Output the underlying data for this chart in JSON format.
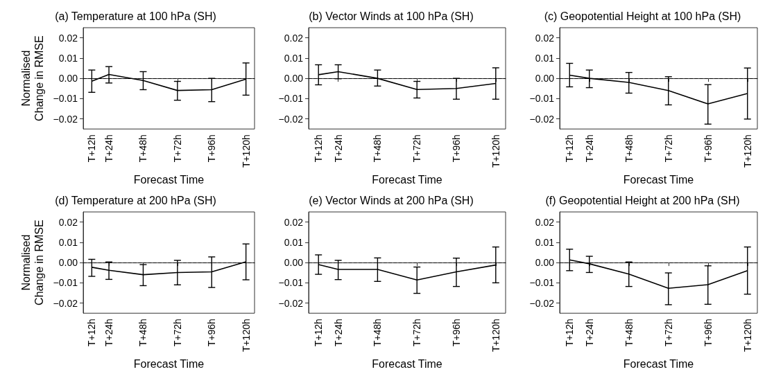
{
  "chart_data": [
    {
      "type": "line",
      "title": "(a) Temperature at 100 hPa (SH)",
      "xlabel": "Forecast Time",
      "ylabel": "Normalised\nChange in RMSE",
      "categories": [
        "T+12h",
        "T+24h",
        null,
        "T+48h",
        null,
        "T+72h",
        null,
        "T+96h",
        null,
        "T+120h"
      ],
      "ylim": [
        -0.025,
        0.025
      ],
      "yticks": [
        {
          "value": -0.02,
          "label": "−0.02"
        },
        {
          "value": -0.01,
          "label": "−0.01"
        },
        {
          "value": 0,
          "label": "0.00"
        },
        {
          "value": 0.01,
          "label": "0.01"
        },
        {
          "value": 0.02,
          "label": "0.02"
        }
      ],
      "grid": false,
      "marker": "none",
      "line_style": "solid",
      "ref_lines": [
        {
          "axis": "y",
          "value": 0,
          "line_style": "dashed",
          "color": "#000000"
        }
      ],
      "series": [
        {
          "color": "#000000",
          "values": [
            -0.0014,
            0.0019,
            null,
            -0.0011,
            null,
            -0.006,
            null,
            -0.0056,
            null,
            -0.0004
          ],
          "errors": [
            [
              -0.0069,
              0.0041
            ],
            [
              -0.0023,
              0.0058
            ],
            null,
            [
              -0.0056,
              0.0033
            ],
            null,
            [
              -0.0108,
              -0.0015
            ],
            null,
            [
              -0.0115,
              0.0
            ],
            null,
            [
              -0.0083,
              0.0076
            ]
          ]
        }
      ]
    },
    {
      "type": "line",
      "title": "(b) Vector Winds at 100 hPa (SH)",
      "xlabel": "Forecast Time",
      "categories": [
        "T+12h",
        "T+24h",
        null,
        "T+48h",
        null,
        "T+72h",
        null,
        "T+96h",
        null,
        "T+120h"
      ],
      "ylim": [
        -0.025,
        0.025
      ],
      "yticks": [
        {
          "value": -0.02,
          "label": "−0.02"
        },
        {
          "value": -0.01,
          "label": "−0.01"
        },
        {
          "value": 0,
          "label": "0.00"
        },
        {
          "value": 0.01,
          "label": "0.01"
        },
        {
          "value": 0.02,
          "label": "0.02"
        }
      ],
      "grid": false,
      "marker": "none",
      "line_style": "solid",
      "ref_lines": [
        {
          "axis": "y",
          "value": 0,
          "line_style": "dashed",
          "color": "#000000"
        }
      ],
      "series": [
        {
          "color": "#000000",
          "values": [
            0.0018,
            0.0033,
            null,
            0.0,
            null,
            -0.0055,
            null,
            -0.005,
            null,
            -0.0025
          ],
          "errors": [
            [
              -0.0032,
              0.0067
            ],
            [
              -0.0002,
              0.0067
            ],
            null,
            [
              -0.0038,
              0.0041
            ],
            null,
            [
              -0.0097,
              -0.0015
            ],
            null,
            [
              -0.0103,
              0.0
            ],
            null,
            [
              -0.0103,
              0.0052
            ]
          ]
        }
      ]
    },
    {
      "type": "line",
      "title": "(c) Geopotential Height at 100 hPa (SH)",
      "xlabel": "Forecast Time",
      "categories": [
        "T+12h",
        "T+24h",
        null,
        "T+48h",
        null,
        "T+72h",
        null,
        "T+96h",
        null,
        "T+120h"
      ],
      "ylim": [
        -0.025,
        0.025
      ],
      "yticks": [
        {
          "value": -0.02,
          "label": "−0.02"
        },
        {
          "value": -0.01,
          "label": "−0.01"
        },
        {
          "value": 0,
          "label": "0.00"
        },
        {
          "value": 0.01,
          "label": "0.01"
        },
        {
          "value": 0.02,
          "label": "0.02"
        }
      ],
      "grid": false,
      "marker": "none",
      "line_style": "solid",
      "ref_lines": [
        {
          "axis": "y",
          "value": 0,
          "line_style": "dashed",
          "color": "#000000"
        }
      ],
      "series": [
        {
          "color": "#000000",
          "values": [
            0.0016,
            0.0,
            null,
            -0.002,
            null,
            -0.006,
            null,
            -0.0126,
            null,
            -0.0075
          ],
          "errors": [
            [
              -0.0042,
              0.0074
            ],
            [
              -0.0046,
              0.0041
            ],
            null,
            [
              -0.0073,
              0.0029
            ],
            null,
            [
              -0.0131,
              0.0008
            ],
            null,
            [
              -0.0226,
              -0.0031
            ],
            null,
            [
              -0.0201,
              0.0051
            ]
          ]
        }
      ]
    },
    {
      "type": "line",
      "title": "(d) Temperature at 200 hPa (SH)",
      "xlabel": "Forecast Time",
      "ylabel": "Normalised\nChange in RMSE",
      "categories": [
        "T+12h",
        "T+24h",
        null,
        "T+48h",
        null,
        "T+72h",
        null,
        "T+96h",
        null,
        "T+120h"
      ],
      "ylim": [
        -0.025,
        0.025
      ],
      "yticks": [
        {
          "value": -0.02,
          "label": "−0.02"
        },
        {
          "value": -0.01,
          "label": "−0.01"
        },
        {
          "value": 0,
          "label": "0.00"
        },
        {
          "value": 0.01,
          "label": "0.01"
        },
        {
          "value": 0.02,
          "label": "0.02"
        }
      ],
      "grid": false,
      "marker": "none",
      "line_style": "solid",
      "ref_lines": [
        {
          "axis": "y",
          "value": 0,
          "line_style": "dashed",
          "color": "#000000"
        }
      ],
      "series": [
        {
          "color": "#000000",
          "values": [
            -0.0023,
            -0.0038,
            null,
            -0.006,
            null,
            -0.0049,
            null,
            -0.0046,
            null,
            0.0004
          ],
          "errors": [
            [
              -0.0068,
              0.0016
            ],
            [
              -0.0083,
              0.0003
            ],
            null,
            [
              -0.0114,
              -0.001
            ],
            null,
            [
              -0.011,
              0.0011
            ],
            null,
            [
              -0.0123,
              0.0028
            ],
            null,
            [
              -0.0085,
              0.0092
            ]
          ]
        }
      ]
    },
    {
      "type": "line",
      "title": "(e) Vector Winds at 200 hPa (SH)",
      "xlabel": "Forecast Time",
      "categories": [
        "T+12h",
        "T+24h",
        null,
        "T+48h",
        null,
        "T+72h",
        null,
        "T+96h",
        null,
        "T+120h"
      ],
      "ylim": [
        -0.025,
        0.025
      ],
      "yticks": [
        {
          "value": -0.02,
          "label": "−0.02"
        },
        {
          "value": -0.01,
          "label": "−0.01"
        },
        {
          "value": 0,
          "label": "0.00"
        },
        {
          "value": 0.01,
          "label": "0.01"
        },
        {
          "value": 0.02,
          "label": "0.02"
        }
      ],
      "grid": false,
      "marker": "none",
      "line_style": "solid",
      "ref_lines": [
        {
          "axis": "y",
          "value": 0,
          "line_style": "dashed",
          "color": "#000000"
        }
      ],
      "series": [
        {
          "color": "#000000",
          "values": [
            -0.001,
            -0.0034,
            null,
            -0.0034,
            null,
            -0.0086,
            null,
            -0.0046,
            null,
            -0.0012
          ],
          "errors": [
            [
              -0.0058,
              0.0038
            ],
            [
              -0.0084,
              0.0011
            ],
            null,
            [
              -0.0093,
              0.0023
            ],
            null,
            [
              -0.0152,
              -0.0022
            ],
            null,
            [
              -0.0118,
              0.0022
            ],
            null,
            [
              -0.01,
              0.0077
            ]
          ]
        }
      ]
    },
    {
      "type": "line",
      "title": "(f) Geopotential Height at 200 hPa (SH)",
      "xlabel": "Forecast Time",
      "categories": [
        "T+12h",
        "T+24h",
        null,
        "T+48h",
        null,
        "T+72h",
        null,
        "T+96h",
        null,
        "T+120h"
      ],
      "ylim": [
        -0.025,
        0.025
      ],
      "yticks": [
        {
          "value": -0.02,
          "label": "−0.02"
        },
        {
          "value": -0.01,
          "label": "−0.01"
        },
        {
          "value": 0,
          "label": "0.00"
        },
        {
          "value": 0.01,
          "label": "0.01"
        },
        {
          "value": 0.02,
          "label": "0.02"
        }
      ],
      "grid": false,
      "marker": "none",
      "line_style": "solid",
      "ref_lines": [
        {
          "axis": "y",
          "value": 0,
          "line_style": "dashed",
          "color": "#000000"
        }
      ],
      "series": [
        {
          "color": "#000000",
          "values": [
            0.0013,
            -0.0006,
            null,
            -0.0057,
            null,
            -0.0127,
            null,
            -0.0109,
            null,
            -0.004
          ],
          "errors": [
            [
              -0.004,
              0.0066
            ],
            [
              -0.0049,
              0.0031
            ],
            null,
            [
              -0.0118,
              0.0003
            ],
            null,
            [
              -0.0208,
              -0.0051
            ],
            null,
            [
              -0.0206,
              -0.0016
            ],
            null,
            [
              -0.0156,
              0.0077
            ]
          ]
        }
      ]
    }
  ]
}
